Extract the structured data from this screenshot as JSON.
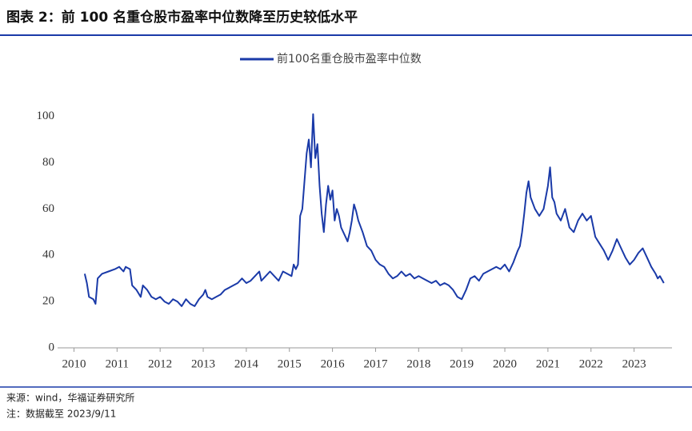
{
  "header": {
    "title": "图表 2：前 100 名重仓股市盈率中位数降至历史较低水平"
  },
  "chart_data": {
    "type": "line",
    "x": [
      2010.25,
      2010.3,
      2010.35,
      2010.45,
      2010.5,
      2010.55,
      2010.65,
      2010.8,
      2010.95,
      2011.05,
      2011.15,
      2011.2,
      2011.3,
      2011.35,
      2011.45,
      2011.55,
      2011.6,
      2011.7,
      2011.8,
      2011.9,
      2012.0,
      2012.1,
      2012.2,
      2012.3,
      2012.4,
      2012.5,
      2012.6,
      2012.7,
      2012.8,
      2012.9,
      2013.0,
      2013.05,
      2013.1,
      2013.2,
      2013.3,
      2013.4,
      2013.5,
      2013.6,
      2013.7,
      2013.8,
      2013.9,
      2014.0,
      2014.1,
      2014.2,
      2014.3,
      2014.35,
      2014.45,
      2014.55,
      2014.65,
      2014.75,
      2014.85,
      2014.95,
      2015.05,
      2015.1,
      2015.15,
      2015.2,
      2015.25,
      2015.3,
      2015.35,
      2015.4,
      2015.45,
      2015.5,
      2015.55,
      2015.6,
      2015.65,
      2015.7,
      2015.75,
      2015.8,
      2015.85,
      2015.9,
      2015.95,
      2016.0,
      2016.05,
      2016.1,
      2016.15,
      2016.2,
      2016.3,
      2016.35,
      2016.4,
      2016.45,
      2016.5,
      2016.55,
      2016.6,
      2016.7,
      2016.8,
      2016.9,
      2017.0,
      2017.1,
      2017.2,
      2017.3,
      2017.4,
      2017.5,
      2017.6,
      2017.7,
      2017.8,
      2017.9,
      2018.0,
      2018.1,
      2018.2,
      2018.3,
      2018.4,
      2018.5,
      2018.6,
      2018.7,
      2018.8,
      2018.9,
      2019.0,
      2019.1,
      2019.2,
      2019.3,
      2019.4,
      2019.5,
      2019.6,
      2019.7,
      2019.8,
      2019.9,
      2020.0,
      2020.1,
      2020.2,
      2020.3,
      2020.35,
      2020.4,
      2020.45,
      2020.5,
      2020.55,
      2020.6,
      2020.7,
      2020.8,
      2020.9,
      2021.0,
      2021.05,
      2021.1,
      2021.15,
      2021.2,
      2021.3,
      2021.4,
      2021.5,
      2021.6,
      2021.7,
      2021.8,
      2021.9,
      2022.0,
      2022.1,
      2022.2,
      2022.3,
      2022.4,
      2022.5,
      2022.6,
      2022.7,
      2022.8,
      2022.9,
      2023.0,
      2023.1,
      2023.2,
      2023.3,
      2023.4,
      2023.5,
      2023.55,
      2023.6,
      2023.69
    ],
    "series": [
      {
        "name": "前100名重仓股市盈率中位数",
        "color": "#1a3aa8",
        "values": [
          32,
          28,
          22,
          21,
          19,
          30,
          32,
          33,
          34,
          35,
          33,
          35,
          34,
          27,
          25,
          22,
          27,
          25,
          22,
          21,
          22,
          20,
          19,
          21,
          20,
          18,
          21,
          19,
          18,
          21,
          23,
          25,
          22,
          21,
          22,
          23,
          25,
          26,
          27,
          28,
          30,
          28,
          29,
          31,
          33,
          29,
          31,
          33,
          31,
          29,
          33,
          32,
          31,
          36,
          34,
          36,
          57,
          60,
          72,
          84,
          90,
          78,
          101,
          82,
          88,
          70,
          58,
          50,
          62,
          70,
          64,
          68,
          55,
          60,
          57,
          52,
          48,
          46,
          50,
          55,
          62,
          59,
          55,
          50,
          44,
          42,
          38,
          36,
          35,
          32,
          30,
          31,
          33,
          31,
          32,
          30,
          31,
          30,
          29,
          28,
          29,
          27,
          28,
          27,
          25,
          22,
          21,
          25,
          30,
          31,
          29,
          32,
          33,
          34,
          35,
          34,
          36,
          33,
          37,
          42,
          44,
          50,
          58,
          67,
          72,
          65,
          60,
          57,
          60,
          70,
          78,
          65,
          63,
          58,
          55,
          60,
          52,
          50,
          55,
          58,
          55,
          57,
          48,
          45,
          42,
          38,
          42,
          47,
          43,
          39,
          36,
          38,
          41,
          43,
          39,
          35,
          32,
          30,
          31,
          28
        ]
      }
    ],
    "xlim": [
      2009.62,
      2023.88
    ],
    "xticks": [
      2010,
      2011,
      2012,
      2013,
      2014,
      2015,
      2016,
      2017,
      2018,
      2019,
      2020,
      2021,
      2022,
      2023
    ],
    "ylim": [
      0,
      104
    ],
    "yticks": [
      0,
      20,
      40,
      60,
      80,
      100
    ],
    "legend": "top"
  },
  "footer": {
    "source": "来源：wind，华福证券研究所",
    "note": "注：数据截至 2023/9/11"
  }
}
